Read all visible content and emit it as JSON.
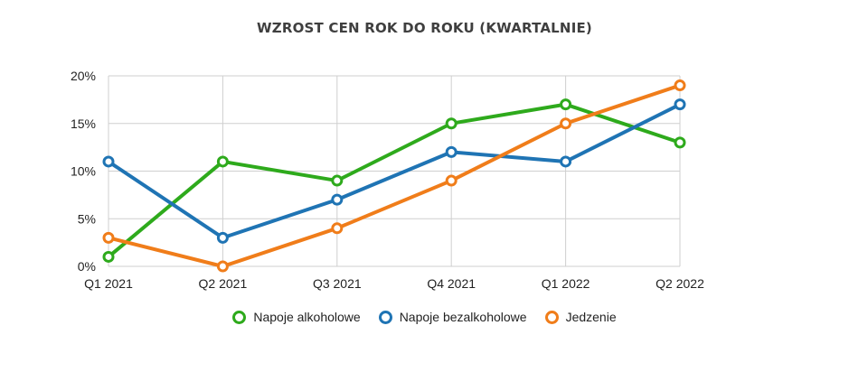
{
  "chart_data": {
    "type": "line",
    "title": "WZROST CEN ROK DO ROKU (KWARTALNIE)",
    "categories": [
      "Q1 2021",
      "Q2 2021",
      "Q3 2021",
      "Q4 2021",
      "Q1 2022",
      "Q2 2022"
    ],
    "y_ticks": [
      "0%",
      "5%",
      "10%",
      "15%",
      "20%"
    ],
    "ylim": [
      0,
      20
    ],
    "grid": true,
    "legend_position": "bottom",
    "series": [
      {
        "name": "Napoje alkoholowe",
        "color": "#2eaa1c",
        "values": [
          1,
          11,
          9,
          15,
          17,
          13
        ]
      },
      {
        "name": "Napoje bezalkoholowe",
        "color": "#1f74b4",
        "values": [
          11,
          3,
          7,
          12,
          11,
          17
        ]
      },
      {
        "name": "Jedzenie",
        "color": "#f07d1a",
        "values": [
          3,
          0,
          4,
          9,
          15,
          19
        ]
      }
    ]
  }
}
